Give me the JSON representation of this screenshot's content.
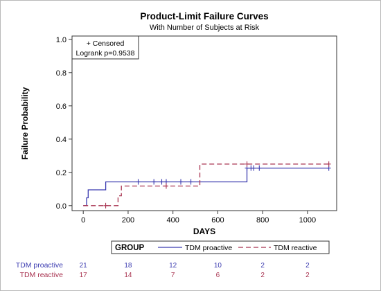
{
  "chart_data": {
    "type": "line",
    "step": true,
    "title": "Product-Limit Failure Curves",
    "subtitle": "With Number of Subjects at Risk",
    "xlabel": "DAYS",
    "ylabel": "Failure Probability",
    "xlim": [
      -50,
      1130
    ],
    "ylim": [
      -0.03,
      1.02
    ],
    "xticks": [
      0,
      200,
      400,
      600,
      800,
      1000
    ],
    "xtick_labels": [
      "0",
      "200",
      "400",
      "600",
      "800",
      "1000"
    ],
    "yticks": [
      0.0,
      0.2,
      0.4,
      0.6,
      0.8,
      1.0
    ],
    "ytick_labels": [
      "0.0",
      "0.2",
      "0.4",
      "0.6",
      "0.8",
      "1.0"
    ],
    "grid": false,
    "inset_lines": [
      "+ Censored",
      "Logrank p=0.9538"
    ],
    "legend": {
      "title": "GROUP",
      "placement": "bottom"
    },
    "series": [
      {
        "name": "TDM proactive",
        "color": "#3b3bb0",
        "dash": "solid",
        "x": [
          0,
          15,
          15,
          22,
          22,
          100,
          100,
          730,
          730,
          1095
        ],
        "y": [
          0,
          0,
          0.047,
          0.047,
          0.095,
          0.095,
          0.143,
          0.143,
          0.226,
          0.226
        ],
        "censored": [
          [
            245,
            0.143
          ],
          [
            315,
            0.143
          ],
          [
            350,
            0.143
          ],
          [
            370,
            0.143
          ],
          [
            435,
            0.143
          ],
          [
            480,
            0.143
          ],
          [
            730,
            0.226
          ],
          [
            748,
            0.226
          ],
          [
            760,
            0.226
          ],
          [
            785,
            0.226
          ],
          [
            1095,
            0.226
          ]
        ]
      },
      {
        "name": "TDM reactive",
        "color": "#a8324f",
        "dash": "dashed",
        "x": [
          0,
          155,
          155,
          170,
          170,
          520,
          520,
          1095
        ],
        "y": [
          0,
          0,
          0.059,
          0.059,
          0.118,
          0.118,
          0.25,
          0.25
        ],
        "censored": [
          [
            100,
            0.0
          ],
          [
            370,
            0.118
          ],
          [
            730,
            0.25
          ],
          [
            1095,
            0.25
          ]
        ]
      }
    ],
    "risk_table": {
      "rows": [
        {
          "name": "TDM proactive",
          "color": "#3b3bb0",
          "values": [
            "21",
            "18",
            "12",
            "10",
            "2",
            "2"
          ]
        },
        {
          "name": "TDM reactive",
          "color": "#a8324f",
          "values": [
            "17",
            "14",
            "7",
            "6",
            "2",
            "2"
          ]
        }
      ]
    }
  }
}
